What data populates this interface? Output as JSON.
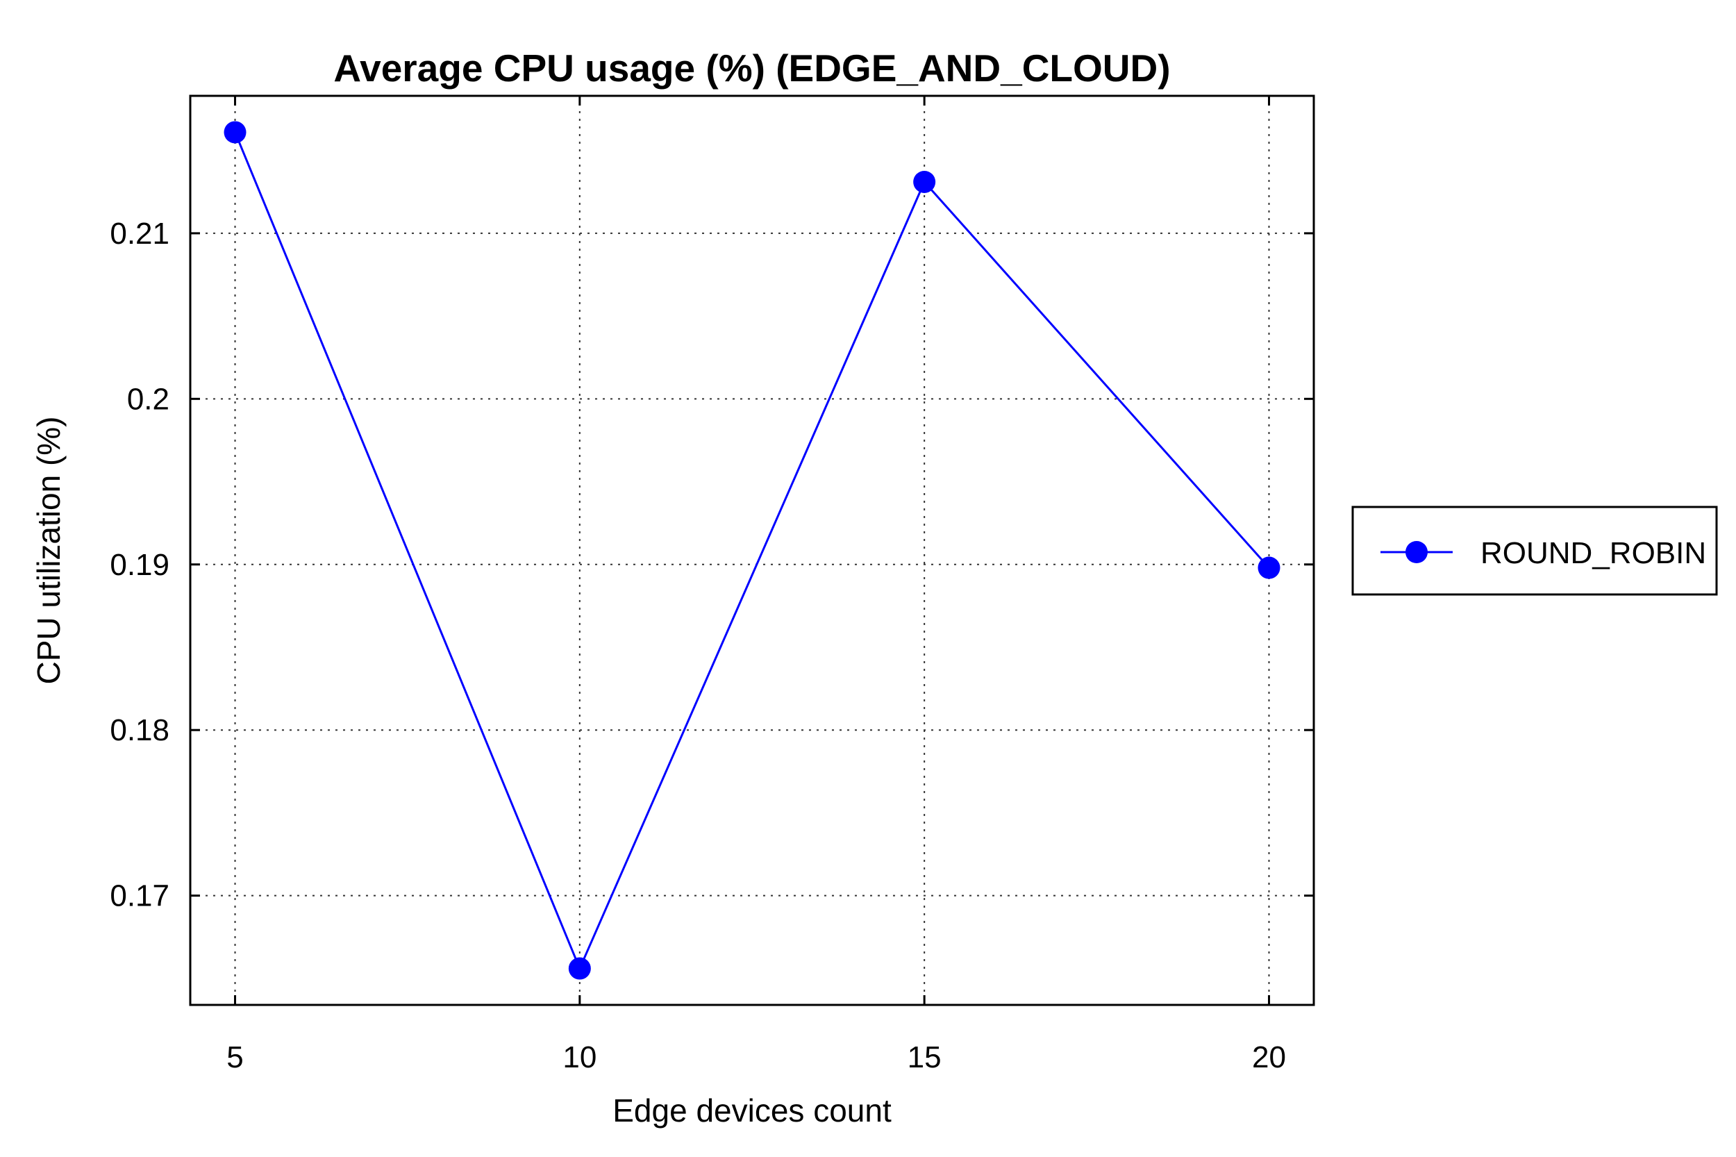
{
  "chart_data": {
    "type": "line",
    "title": "Average CPU usage (%) (EDGE_AND_CLOUD)",
    "xlabel": "Edge devices count",
    "ylabel": "CPU utilization (%)",
    "x": [
      5,
      10,
      15,
      20
    ],
    "xticks": [
      "5",
      "10",
      "15",
      "20"
    ],
    "yticks": [
      "0.17",
      "0.18",
      "0.19",
      "0.2",
      "0.21"
    ],
    "xlim": [
      4.35,
      20.65
    ],
    "ylim": [
      0.1634,
      0.2183
    ],
    "grid": true,
    "legend_position": "outside-right",
    "series": [
      {
        "name": "ROUND_ROBIN",
        "values": [
          0.2161,
          0.1656,
          0.2131,
          0.1898
        ],
        "color": "#0000ff",
        "marker": "circle"
      }
    ]
  }
}
